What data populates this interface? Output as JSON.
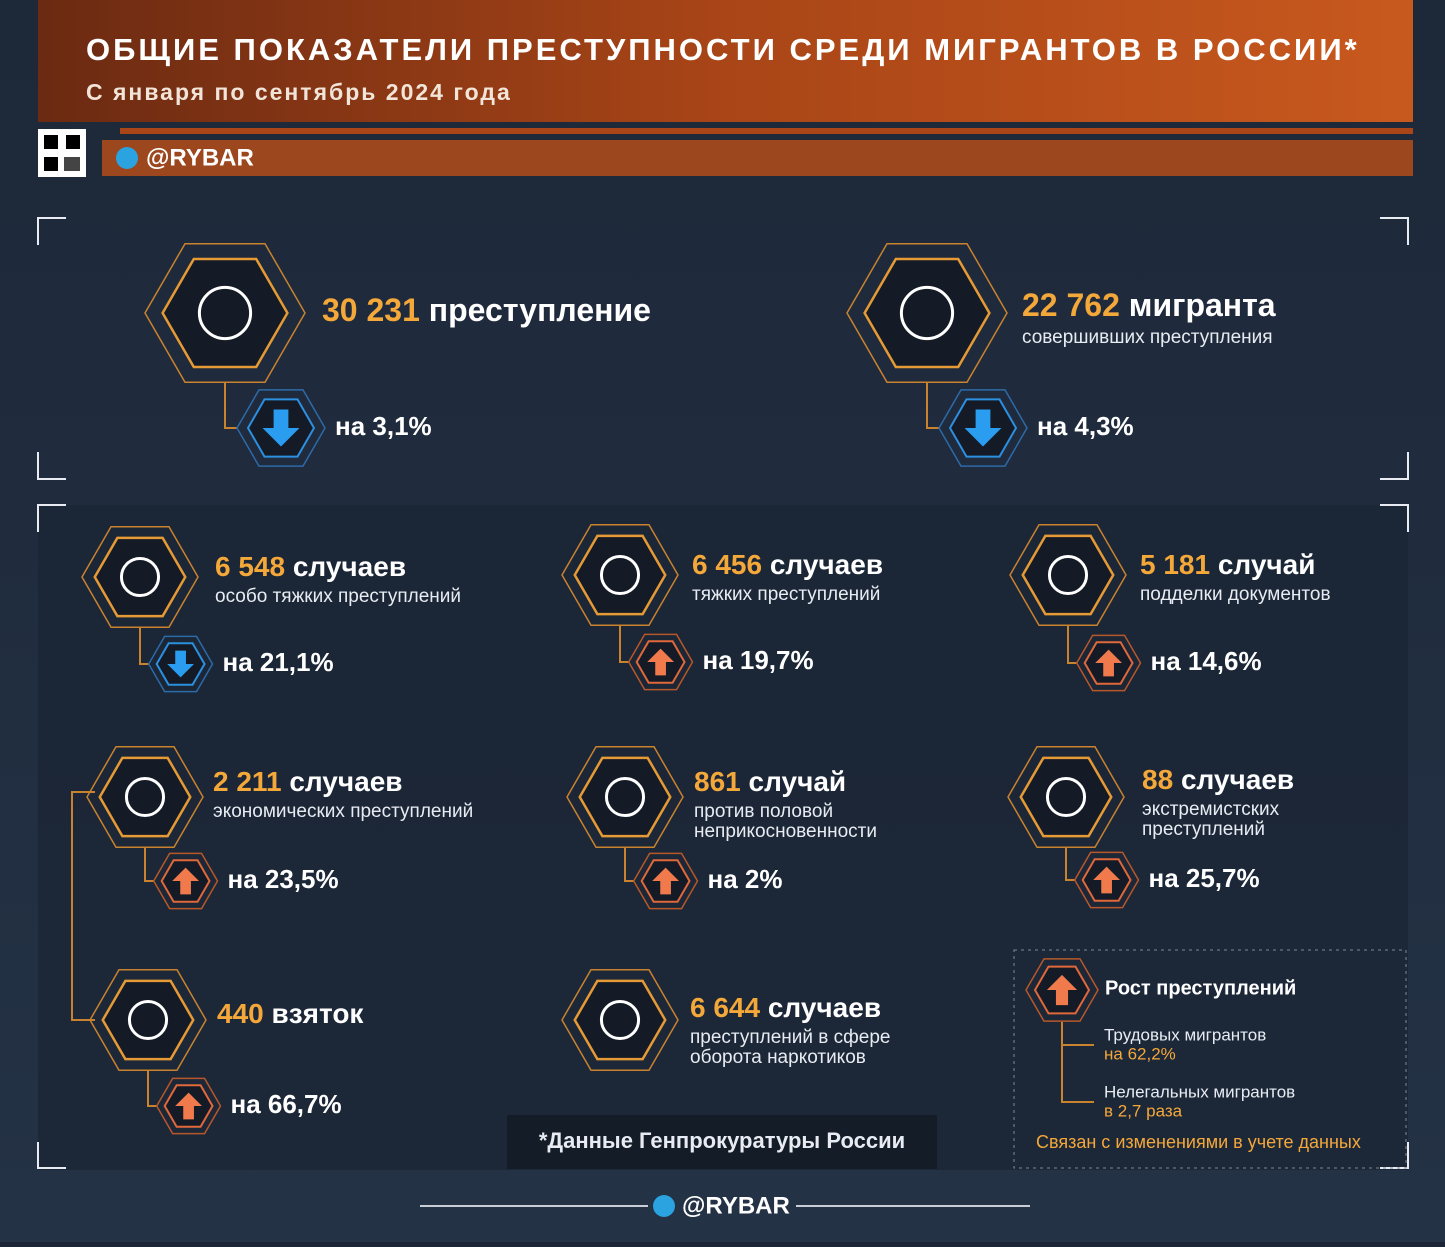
{
  "header": {
    "title": "ОБЩИЕ ПОКАЗАТЕЛИ ПРЕСТУПНОСТИ СРЕДИ МИГРАНТОВ В РОССИИ*",
    "subtitle": "С января по сентябрь 2024 года",
    "brand": "@RYBAR"
  },
  "top_stats": [
    {
      "value": "30 231",
      "unit": "преступление",
      "sub": [],
      "change": "на 3,1%",
      "trend": "down"
    },
    {
      "value": "22 762",
      "unit": "мигранта",
      "sub": [
        "совершивших преступления"
      ],
      "change": "на 4,3%",
      "trend": "down"
    }
  ],
  "items": [
    {
      "value": "6 548",
      "unit": "случаев",
      "sub": [
        "особо тяжких преступлений"
      ],
      "change": "на 21,1%",
      "trend": "down"
    },
    {
      "value": "6 456",
      "unit": "случаев",
      "sub": [
        "тяжких преступлений"
      ],
      "change": "на 19,7%",
      "trend": "up"
    },
    {
      "value": "5 181",
      "unit": "случай",
      "sub": [
        "подделки документов"
      ],
      "change": "на 14,6%",
      "trend": "up"
    },
    {
      "value": "2 211",
      "unit": "случаев",
      "sub": [
        "экономических преступлений"
      ],
      "change": "на 23,5%",
      "trend": "up"
    },
    {
      "value": "861",
      "unit": "случай",
      "sub": [
        "против половой",
        "неприкосновенности"
      ],
      "change": "на 2%",
      "trend": "up"
    },
    {
      "value": "88",
      "unit": "случаев",
      "sub": [
        "экстремистских",
        "преступлений"
      ],
      "change": "на 25,7%",
      "trend": "up"
    },
    {
      "value": "440",
      "unit": "взяток",
      "sub": [],
      "change": "на 66,7%",
      "trend": "up"
    },
    {
      "value": "6 644",
      "unit": "случаев",
      "sub": [
        "преступлений в сфере",
        "оборота наркотиков"
      ],
      "change": null,
      "trend": null
    }
  ],
  "legend": {
    "title": "Рост преступлений",
    "entries": [
      {
        "label": "Трудовых мигрантов",
        "value": "на 62,2%"
      },
      {
        "label": "Нелегальных мигрантов",
        "value": "в 2,7 раза"
      }
    ],
    "note": "Связан с изменениями в учете данных"
  },
  "footer": {
    "source": "*Данные Генпрокуратуры России",
    "brand": "@RYBAR"
  }
}
